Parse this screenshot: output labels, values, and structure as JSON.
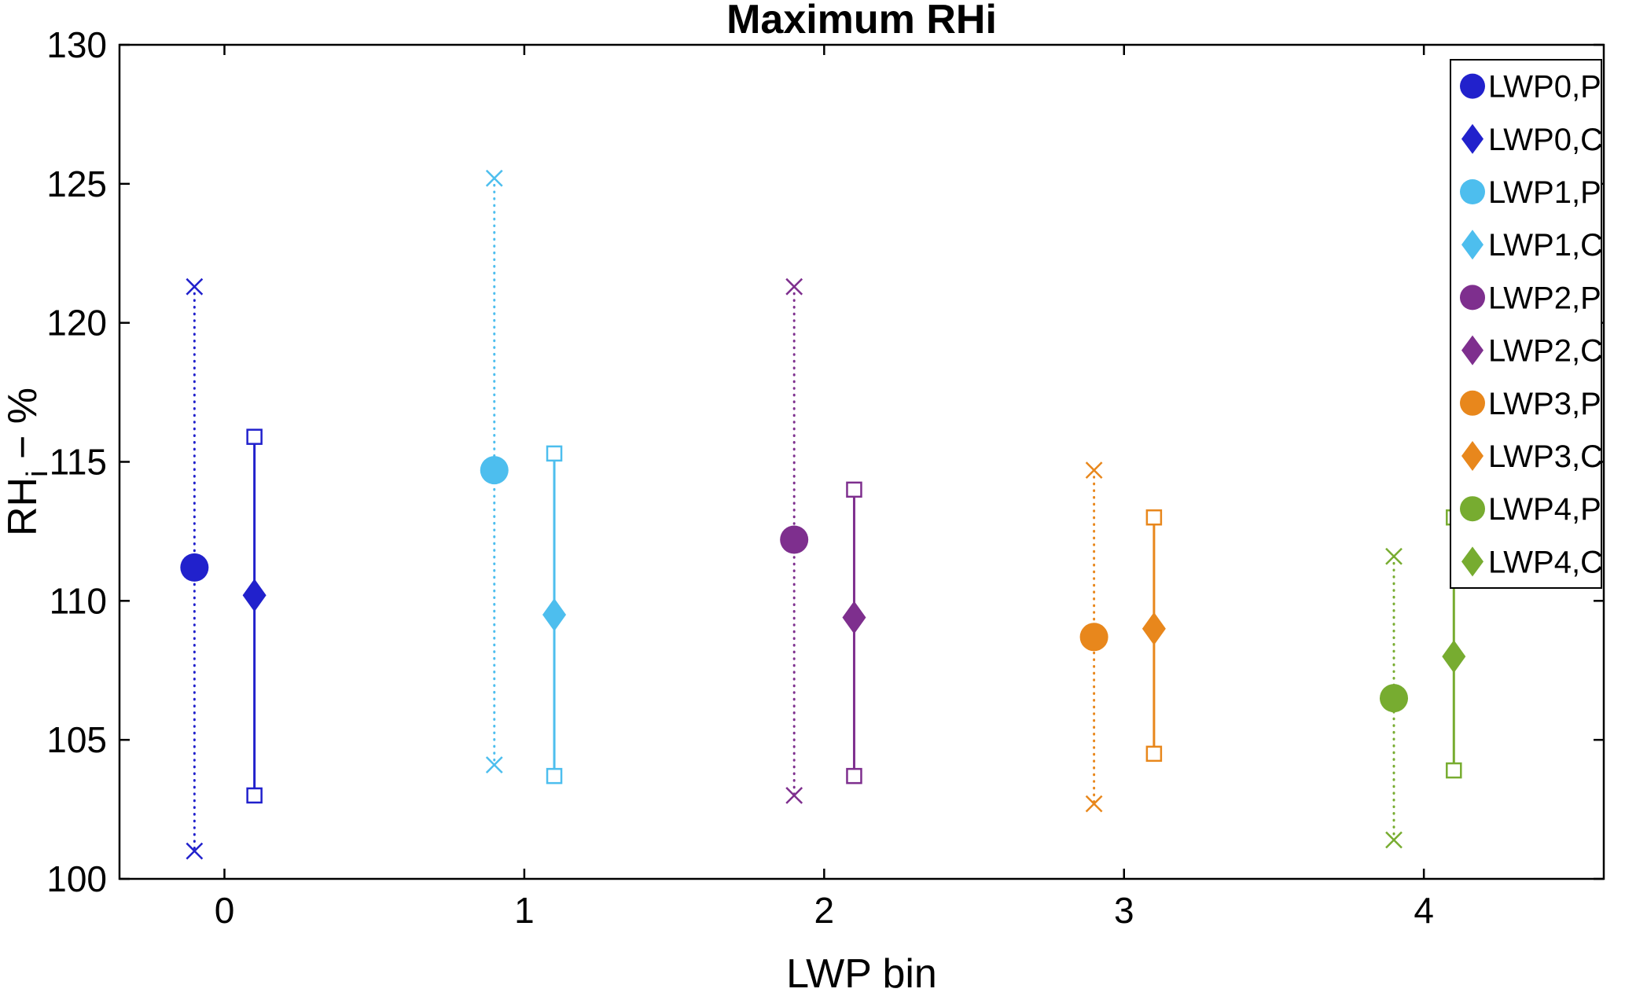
{
  "chart_data": {
    "type": "scatter",
    "title": "Maximum RHi",
    "xlabel": "LWP bin",
    "ylabel": {
      "base": "RH",
      "sub": "i",
      "rest": " − %"
    },
    "xlim": [
      -0.35,
      4.6
    ],
    "ylim": [
      100,
      130
    ],
    "xticks": [
      0,
      1,
      2,
      3,
      4
    ],
    "yticks": [
      100,
      105,
      110,
      115,
      120,
      125,
      130
    ],
    "grid": false,
    "legend_position": "top-right",
    "legend_border_color": "#000000",
    "axis_color": "#000000",
    "background_color": "#ffffff",
    "series": [
      {
        "name": "LWP0,P",
        "color": "#2121cc",
        "marker": "circle",
        "linestyle": "dotted",
        "cap": "x",
        "x": -0.1,
        "y": 111.2,
        "lo": 101.0,
        "hi": 121.3
      },
      {
        "name": "LWP0,C",
        "color": "#2121cc",
        "marker": "diamond",
        "linestyle": "solid",
        "cap": "square",
        "x": 0.1,
        "y": 110.2,
        "lo": 103.0,
        "hi": 115.9
      },
      {
        "name": "LWP1,P",
        "color": "#4dbeee",
        "marker": "circle",
        "linestyle": "dotted",
        "cap": "x",
        "x": 0.9,
        "y": 114.7,
        "lo": 104.1,
        "hi": 125.2
      },
      {
        "name": "LWP1,C",
        "color": "#4dbeee",
        "marker": "diamond",
        "linestyle": "solid",
        "cap": "square",
        "x": 1.1,
        "y": 109.5,
        "lo": 103.7,
        "hi": 115.3
      },
      {
        "name": "LWP2,P",
        "color": "#7e2f8e",
        "marker": "circle",
        "linestyle": "dotted",
        "cap": "x",
        "x": 1.9,
        "y": 112.2,
        "lo": 103.0,
        "hi": 121.3
      },
      {
        "name": "LWP2,C",
        "color": "#7e2f8e",
        "marker": "diamond",
        "linestyle": "solid",
        "cap": "square",
        "x": 2.1,
        "y": 109.4,
        "lo": 103.7,
        "hi": 114.0
      },
      {
        "name": "LWP3,P",
        "color": "#e8871c",
        "marker": "circle",
        "linestyle": "dotted",
        "cap": "x",
        "x": 2.9,
        "y": 108.7,
        "lo": 102.7,
        "hi": 114.7
      },
      {
        "name": "LWP3,C",
        "color": "#e8871c",
        "marker": "diamond",
        "linestyle": "solid",
        "cap": "square",
        "x": 3.1,
        "y": 109.0,
        "lo": 104.5,
        "hi": 113.0
      },
      {
        "name": "LWP4,P",
        "color": "#77ac30",
        "marker": "circle",
        "linestyle": "dotted",
        "cap": "x",
        "x": 3.9,
        "y": 106.5,
        "lo": 101.4,
        "hi": 111.6
      },
      {
        "name": "LWP4,C",
        "color": "#77ac30",
        "marker": "diamond",
        "linestyle": "solid",
        "cap": "square",
        "x": 4.1,
        "y": 108.0,
        "lo": 103.9,
        "hi": 113.0
      }
    ]
  }
}
